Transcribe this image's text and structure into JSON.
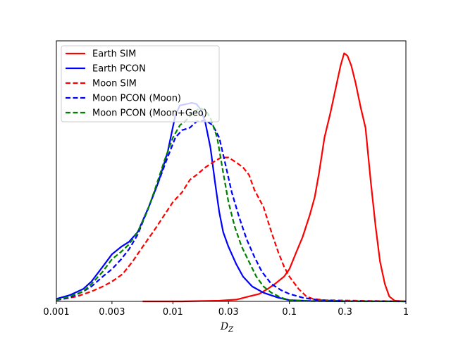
{
  "chart_data": {
    "type": "line",
    "xlabel": "D",
    "xlabel_sub": "Z",
    "ylabel": "",
    "xscale": "log",
    "xlim": [
      0.001,
      1
    ],
    "ylim": [
      0,
      1.05
    ],
    "y_ticks_shown": false,
    "grid": false,
    "legend_position": "top-left",
    "x_ticks": [
      {
        "value": 0.001,
        "label": "0.001"
      },
      {
        "value": 0.003,
        "label": "0.003"
      },
      {
        "value": 0.01,
        "label": "0.01"
      },
      {
        "value": 0.03,
        "label": "0.03"
      },
      {
        "value": 0.1,
        "label": "0.1"
      },
      {
        "value": 0.3,
        "label": "0.3"
      },
      {
        "value": 1,
        "label": "1"
      }
    ],
    "series": [
      {
        "name": "Earth SIM",
        "color": "#ff0000",
        "dash": "solid",
        "points": [
          [
            0.0055,
            0.0
          ],
          [
            0.012,
            0.0
          ],
          [
            0.025,
            0.003
          ],
          [
            0.035,
            0.007
          ],
          [
            0.045,
            0.02
          ],
          [
            0.055,
            0.03
          ],
          [
            0.065,
            0.05
          ],
          [
            0.075,
            0.07
          ],
          [
            0.09,
            0.1
          ],
          [
            0.1,
            0.13
          ],
          [
            0.115,
            0.2
          ],
          [
            0.13,
            0.26
          ],
          [
            0.15,
            0.35
          ],
          [
            0.165,
            0.42
          ],
          [
            0.18,
            0.52
          ],
          [
            0.2,
            0.66
          ],
          [
            0.225,
            0.76
          ],
          [
            0.25,
            0.86
          ],
          [
            0.275,
            0.95
          ],
          [
            0.295,
            1.0
          ],
          [
            0.315,
            0.99
          ],
          [
            0.34,
            0.95
          ],
          [
            0.37,
            0.88
          ],
          [
            0.41,
            0.78
          ],
          [
            0.45,
            0.7
          ],
          [
            0.5,
            0.48
          ],
          [
            0.55,
            0.3
          ],
          [
            0.6,
            0.16
          ],
          [
            0.66,
            0.07
          ],
          [
            0.72,
            0.02
          ],
          [
            0.8,
            0.003
          ],
          [
            1.0,
            0.0
          ]
        ]
      },
      {
        "name": "Earth PCON",
        "color": "#0000ff",
        "dash": "solid",
        "points": [
          [
            0.001,
            0.01
          ],
          [
            0.0013,
            0.025
          ],
          [
            0.0017,
            0.05
          ],
          [
            0.002,
            0.08
          ],
          [
            0.0025,
            0.14
          ],
          [
            0.003,
            0.19
          ],
          [
            0.0036,
            0.22
          ],
          [
            0.0042,
            0.24
          ],
          [
            0.005,
            0.28
          ],
          [
            0.0062,
            0.38
          ],
          [
            0.0075,
            0.48
          ],
          [
            0.009,
            0.6
          ],
          [
            0.0105,
            0.75
          ],
          [
            0.0115,
            0.79
          ],
          [
            0.013,
            0.795
          ],
          [
            0.0145,
            0.8
          ],
          [
            0.016,
            0.795
          ],
          [
            0.0175,
            0.77
          ],
          [
            0.019,
            0.72
          ],
          [
            0.021,
            0.62
          ],
          [
            0.023,
            0.48
          ],
          [
            0.025,
            0.36
          ],
          [
            0.027,
            0.28
          ],
          [
            0.03,
            0.22
          ],
          [
            0.035,
            0.15
          ],
          [
            0.04,
            0.1
          ],
          [
            0.048,
            0.06
          ],
          [
            0.06,
            0.035
          ],
          [
            0.08,
            0.015
          ],
          [
            0.1,
            0.005
          ],
          [
            0.15,
            0.002
          ],
          [
            0.3,
            0.0
          ]
        ]
      },
      {
        "name": "Moon SIM",
        "color": "#ff0000",
        "dash": "dashed",
        "points": [
          [
            0.001,
            0.005
          ],
          [
            0.0015,
            0.02
          ],
          [
            0.002,
            0.04
          ],
          [
            0.0025,
            0.06
          ],
          [
            0.003,
            0.08
          ],
          [
            0.0037,
            0.11
          ],
          [
            0.0045,
            0.16
          ],
          [
            0.0055,
            0.22
          ],
          [
            0.007,
            0.29
          ],
          [
            0.0085,
            0.35
          ],
          [
            0.01,
            0.4
          ],
          [
            0.012,
            0.44
          ],
          [
            0.014,
            0.49
          ],
          [
            0.016,
            0.51
          ],
          [
            0.019,
            0.54
          ],
          [
            0.022,
            0.56
          ],
          [
            0.026,
            0.58
          ],
          [
            0.03,
            0.58
          ],
          [
            0.035,
            0.56
          ],
          [
            0.04,
            0.54
          ],
          [
            0.045,
            0.51
          ],
          [
            0.05,
            0.45
          ],
          [
            0.06,
            0.38
          ],
          [
            0.07,
            0.28
          ],
          [
            0.08,
            0.2
          ],
          [
            0.09,
            0.14
          ],
          [
            0.1,
            0.1
          ],
          [
            0.12,
            0.05
          ],
          [
            0.14,
            0.02
          ],
          [
            0.16,
            0.01
          ],
          [
            0.2,
            0.005
          ],
          [
            0.5,
            0.002
          ],
          [
            1.0,
            0.0
          ]
        ]
      },
      {
        "name": "Moon PCON (Moon)",
        "color": "#0000ff",
        "dash": "dashed",
        "points": [
          [
            0.001,
            0.005
          ],
          [
            0.0013,
            0.015
          ],
          [
            0.0017,
            0.04
          ],
          [
            0.002,
            0.06
          ],
          [
            0.0025,
            0.1
          ],
          [
            0.003,
            0.13
          ],
          [
            0.0036,
            0.17
          ],
          [
            0.0042,
            0.21
          ],
          [
            0.005,
            0.27
          ],
          [
            0.0062,
            0.38
          ],
          [
            0.0075,
            0.48
          ],
          [
            0.009,
            0.58
          ],
          [
            0.0105,
            0.66
          ],
          [
            0.012,
            0.69
          ],
          [
            0.014,
            0.7
          ],
          [
            0.016,
            0.725
          ],
          [
            0.019,
            0.73
          ],
          [
            0.022,
            0.71
          ],
          [
            0.025,
            0.66
          ],
          [
            0.028,
            0.56
          ],
          [
            0.032,
            0.44
          ],
          [
            0.037,
            0.34
          ],
          [
            0.043,
            0.25
          ],
          [
            0.05,
            0.18
          ],
          [
            0.058,
            0.12
          ],
          [
            0.07,
            0.07
          ],
          [
            0.085,
            0.045
          ],
          [
            0.1,
            0.03
          ],
          [
            0.13,
            0.015
          ],
          [
            0.18,
            0.005
          ],
          [
            0.3,
            0.001
          ],
          [
            1.0,
            0.0
          ]
        ]
      },
      {
        "name": "Moon PCON (Moon+Geo)",
        "color": "#008000",
        "dash": "dashed",
        "points": [
          [
            0.001,
            0.005
          ],
          [
            0.0013,
            0.02
          ],
          [
            0.0017,
            0.04
          ],
          [
            0.002,
            0.07
          ],
          [
            0.0025,
            0.12
          ],
          [
            0.003,
            0.17
          ],
          [
            0.0036,
            0.2
          ],
          [
            0.0042,
            0.23
          ],
          [
            0.005,
            0.28
          ],
          [
            0.006,
            0.36
          ],
          [
            0.007,
            0.45
          ],
          [
            0.0085,
            0.57
          ],
          [
            0.01,
            0.66
          ],
          [
            0.0115,
            0.71
          ],
          [
            0.013,
            0.73
          ],
          [
            0.015,
            0.76
          ],
          [
            0.017,
            0.78
          ],
          [
            0.019,
            0.77
          ],
          [
            0.021,
            0.74
          ],
          [
            0.024,
            0.66
          ],
          [
            0.027,
            0.52
          ],
          [
            0.03,
            0.4
          ],
          [
            0.034,
            0.3
          ],
          [
            0.039,
            0.22
          ],
          [
            0.045,
            0.16
          ],
          [
            0.052,
            0.1
          ],
          [
            0.06,
            0.06
          ],
          [
            0.07,
            0.035
          ],
          [
            0.085,
            0.015
          ],
          [
            0.1,
            0.005
          ],
          [
            0.15,
            0.001
          ],
          [
            1.0,
            0.0
          ]
        ]
      }
    ]
  }
}
